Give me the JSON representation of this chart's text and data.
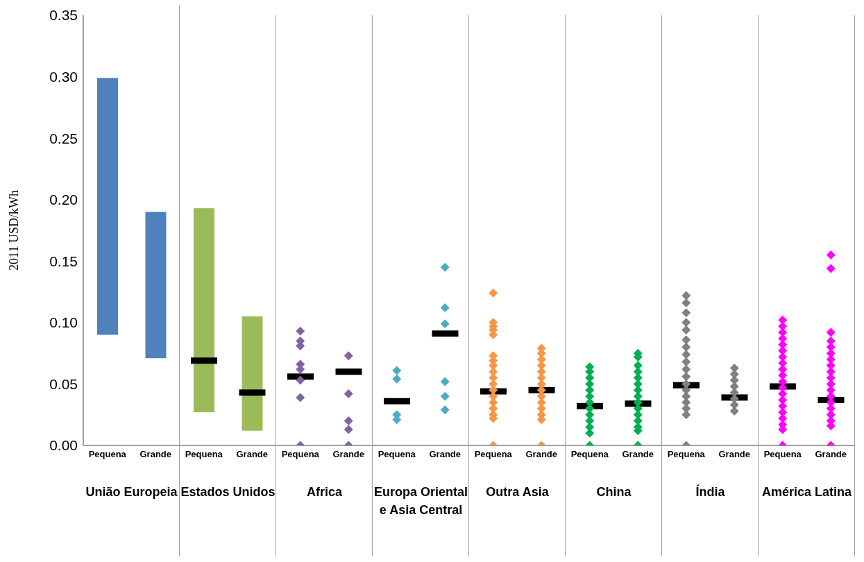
{
  "chart_data": [
    {
      "type": "bar",
      "xlabel": "União Europeia",
      "ylabel": "2011 USD/kWh",
      "categories": [
        "Pequena",
        "Grande"
      ],
      "ylim": [
        0,
        0.35
      ],
      "yticks": [
        {
          "value": 0,
          "label": "0.00"
        },
        {
          "value": 0.05,
          "label": "0.05"
        },
        {
          "value": 0.1,
          "label": "0.10"
        },
        {
          "value": 0.15,
          "label": "0.15"
        },
        {
          "value": 0.2,
          "label": "0.20"
        },
        {
          "value": 0.25,
          "label": "0.25"
        },
        {
          "value": 0.3,
          "label": "0.30"
        },
        {
          "value": 0.35,
          "label": "0.35"
        }
      ],
      "series": [
        {
          "color": "#4f81bd",
          "base": [
            0.09,
            0.071
          ],
          "values": [
            0.209,
            0.119
          ]
        }
      ]
    },
    {
      "type": "bar",
      "xlabel": "Estados Unidos",
      "categories": [
        "Pequena",
        "Grande"
      ],
      "ylim": [
        0,
        0.35
      ],
      "tick_labels": "x",
      "series": [
        {
          "color": "#9bbb59",
          "base": [
            0.027,
            0.012
          ],
          "values": [
            0.166,
            0.093
          ]
        },
        {
          "type": "bar",
          "color": "#000000",
          "base": [
            0.069,
            0.043
          ],
          "values": [
            0,
            0
          ]
        }
      ]
    },
    {
      "type": "scatter",
      "xlabel": "Africa",
      "categories": [
        "Pequena",
        "Grande"
      ],
      "ylim": [
        0,
        0.35
      ],
      "tick_labels": "x",
      "series": [
        {
          "marker": "diamond",
          "color": "#8064a2",
          "x": [
            "Pequena",
            "Pequena",
            "Pequena",
            "Pequena",
            "Pequena",
            "Pequena",
            "Pequena",
            "Pequena",
            "Grande",
            "Grande",
            "Grande",
            "Grande",
            "Grande"
          ],
          "values": [
            0.093,
            0.085,
            0.081,
            0.066,
            0.062,
            0.053,
            0.039,
            0.0,
            0.073,
            0.042,
            0.02,
            0.013,
            0.0
          ]
        },
        {
          "type": "bar",
          "color": "#000000",
          "base": [
            0.056,
            0.06
          ],
          "values": [
            0,
            0
          ]
        }
      ]
    },
    {
      "type": "scatter",
      "xlabel": "Europa Oriental e Asia Central",
      "categories": [
        "Pequena",
        "Grande"
      ],
      "ylim": [
        0,
        0.35
      ],
      "tick_labels": "x",
      "series": [
        {
          "marker": "diamond",
          "color": "#4bacc6",
          "x": [
            "Pequena",
            "Pequena",
            "Pequena",
            "Pequena",
            "Grande",
            "Grande",
            "Grande",
            "Grande",
            "Grande",
            "Grande"
          ],
          "values": [
            0.061,
            0.054,
            0.025,
            0.021,
            0.145,
            0.112,
            0.099,
            0.052,
            0.04,
            0.029
          ]
        },
        {
          "type": "bar",
          "color": "#000000",
          "base": [
            0.036,
            0.091
          ],
          "values": [
            0,
            0
          ]
        }
      ]
    },
    {
      "type": "scatter",
      "xlabel": "Outra Asia",
      "categories": [
        "Pequena",
        "Grande"
      ],
      "ylim": [
        0,
        0.35
      ],
      "tick_labels": "x",
      "series": [
        {
          "marker": "diamond",
          "color": "#f79646",
          "x": [
            "Pequena",
            "Pequena",
            "Pequena",
            "Pequena",
            "Pequena",
            "Pequena",
            "Pequena",
            "Pequena",
            "Pequena",
            "Pequena",
            "Pequena",
            "Pequena",
            "Pequena",
            "Pequena",
            "Pequena",
            "Pequena",
            "Pequena",
            "Pequena",
            "Grande",
            "Grande",
            "Grande",
            "Grande",
            "Grande",
            "Grande",
            "Grande",
            "Grande",
            "Grande",
            "Grande",
            "Grande",
            "Grande",
            "Grande",
            "Grande"
          ],
          "values": [
            0.124,
            0.1,
            0.097,
            0.094,
            0.09,
            0.073,
            0.069,
            0.065,
            0.06,
            0.055,
            0.05,
            0.045,
            0.04,
            0.035,
            0.03,
            0.025,
            0.022,
            0.0,
            0.079,
            0.075,
            0.07,
            0.065,
            0.06,
            0.055,
            0.05,
            0.045,
            0.04,
            0.035,
            0.03,
            0.025,
            0.021,
            0.0
          ]
        },
        {
          "type": "bar",
          "color": "#000000",
          "base": [
            0.044,
            0.045
          ],
          "values": [
            0,
            0
          ]
        }
      ]
    },
    {
      "type": "scatter",
      "xlabel": "China",
      "categories": [
        "Pequena",
        "Grande"
      ],
      "ylim": [
        0,
        0.35
      ],
      "tick_labels": "x",
      "series": [
        {
          "marker": "diamond",
          "color": "#00b050",
          "x": [
            "Pequena",
            "Pequena",
            "Pequena",
            "Pequena",
            "Pequena",
            "Pequena",
            "Pequena",
            "Pequena",
            "Pequena",
            "Pequena",
            "Pequena",
            "Pequena",
            "Pequena",
            "Grande",
            "Grande",
            "Grande",
            "Grande",
            "Grande",
            "Grande",
            "Grande",
            "Grande",
            "Grande",
            "Grande",
            "Grande",
            "Grande",
            "Grande",
            "Grande",
            "Grande"
          ],
          "values": [
            0.064,
            0.06,
            0.055,
            0.05,
            0.045,
            0.04,
            0.035,
            0.03,
            0.025,
            0.02,
            0.015,
            0.01,
            0.0,
            0.075,
            0.072,
            0.065,
            0.06,
            0.055,
            0.05,
            0.045,
            0.04,
            0.035,
            0.03,
            0.025,
            0.02,
            0.015,
            0.012,
            0.0
          ]
        },
        {
          "type": "bar",
          "color": "#000000",
          "base": [
            0.032,
            0.034
          ],
          "values": [
            0,
            0
          ]
        }
      ]
    },
    {
      "type": "scatter",
      "xlabel": "Índia",
      "categories": [
        "Pequena",
        "Grande"
      ],
      "ylim": [
        0,
        0.35
      ],
      "tick_labels": "x",
      "series": [
        {
          "marker": "diamond",
          "color": "#808080",
          "x": [
            "Pequena",
            "Pequena",
            "Pequena",
            "Pequena",
            "Pequena",
            "Pequena",
            "Pequena",
            "Pequena",
            "Pequena",
            "Pequena",
            "Pequena",
            "Pequena",
            "Pequena",
            "Pequena",
            "Pequena",
            "Pequena",
            "Pequena",
            "Pequena",
            "Grande",
            "Grande",
            "Grande",
            "Grande",
            "Grande",
            "Grande",
            "Grande",
            "Grande"
          ],
          "values": [
            0.122,
            0.116,
            0.108,
            0.1,
            0.094,
            0.086,
            0.08,
            0.074,
            0.068,
            0.062,
            0.056,
            0.05,
            0.045,
            0.04,
            0.035,
            0.03,
            0.025,
            0.0,
            0.063,
            0.058,
            0.053,
            0.048,
            0.043,
            0.038,
            0.033,
            0.028
          ]
        },
        {
          "type": "bar",
          "color": "#000000",
          "base": [
            0.049,
            0.039
          ],
          "values": [
            0,
            0
          ]
        }
      ]
    },
    {
      "type": "scatter",
      "xlabel": "América Latina",
      "categories": [
        "Pequena",
        "Grande"
      ],
      "ylim": [
        0,
        0.35
      ],
      "tick_labels": "x",
      "series": [
        {
          "marker": "diamond",
          "color": "#ff00ff",
          "x": [
            "Pequena",
            "Pequena",
            "Pequena",
            "Pequena",
            "Pequena",
            "Pequena",
            "Pequena",
            "Pequena",
            "Pequena",
            "Pequena",
            "Pequena",
            "Pequena",
            "Pequena",
            "Pequena",
            "Pequena",
            "Pequena",
            "Pequena",
            "Pequena",
            "Pequena",
            "Pequena",
            "Grande",
            "Grande",
            "Grande",
            "Grande",
            "Grande",
            "Grande",
            "Grande",
            "Grande",
            "Grande",
            "Grande",
            "Grande",
            "Grande",
            "Grande",
            "Grande",
            "Grande",
            "Grande",
            "Grande",
            "Grande",
            "Grande"
          ],
          "values": [
            0.102,
            0.097,
            0.092,
            0.087,
            0.082,
            0.077,
            0.072,
            0.067,
            0.062,
            0.057,
            0.052,
            0.047,
            0.042,
            0.037,
            0.032,
            0.027,
            0.022,
            0.017,
            0.013,
            0.0,
            0.155,
            0.144,
            0.092,
            0.085,
            0.08,
            0.075,
            0.07,
            0.065,
            0.06,
            0.055,
            0.05,
            0.045,
            0.04,
            0.035,
            0.03,
            0.025,
            0.02,
            0.016,
            0.0
          ]
        },
        {
          "type": "bar",
          "color": "#000000",
          "base": [
            0.048,
            0.037
          ],
          "values": [
            0,
            0
          ]
        }
      ]
    }
  ]
}
